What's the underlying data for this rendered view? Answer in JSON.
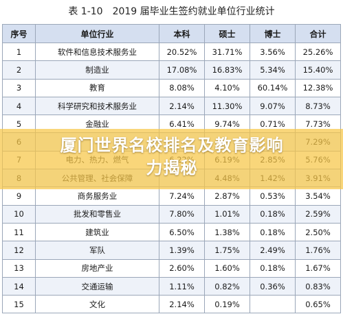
{
  "title": "表 1-10　2019 届毕业生签约就业单位行业统计",
  "headers": [
    "序号",
    "单位行业",
    "本科",
    "硕士",
    "博士",
    "合计"
  ],
  "rows": [
    [
      "1",
      "软件和信息技术服务业",
      "20.52%",
      "31.71%",
      "3.56%",
      "25.26%"
    ],
    [
      "2",
      "制造业",
      "17.08%",
      "16.83%",
      "5.34%",
      "15.40%"
    ],
    [
      "3",
      "教育",
      "8.08%",
      "4.10%",
      "60.14%",
      "12.38%"
    ],
    [
      "4",
      "科学研究和技术服务业",
      "2.14%",
      "11.30%",
      "9.07%",
      "8.73%"
    ],
    [
      "5",
      "金融业",
      "6.41%",
      "9.74%",
      "0.71%",
      "7.73%"
    ],
    [
      "6",
      "",
      "",
      "",
      "",
      "7.29%"
    ],
    [
      "7",
      "电力、热力、燃气",
      "6.22%",
      "6.19%",
      "2.85%",
      "5.76%"
    ],
    [
      "8",
      "公共管理、社会保障",
      "",
      "4.48%",
      "1.42%",
      "3.91%"
    ],
    [
      "9",
      "商务服务业",
      "7.24%",
      "2.87%",
      "0.53%",
      "3.54%"
    ],
    [
      "10",
      "批发和零售业",
      "7.80%",
      "1.01%",
      "0.18%",
      "2.59%"
    ],
    [
      "11",
      "建筑业",
      "6.50%",
      "1.38%",
      "0.18%",
      "2.50%"
    ],
    [
      "12",
      "军队",
      "1.39%",
      "1.75%",
      "2.49%",
      "1.76%"
    ],
    [
      "13",
      "房地产业",
      "2.60%",
      "1.60%",
      "0.18%",
      "1.67%"
    ],
    [
      "14",
      "交通运输",
      "1.11%",
      "0.82%",
      "0.36%",
      "0.83%"
    ],
    [
      "15",
      "文化",
      "2.14%",
      "0.19%",
      "",
      "0.65%"
    ]
  ],
  "banner": {
    "line1": "厦门世界名校排名及教育影响",
    "line2": "力揭秘",
    "color": "#f6c646"
  }
}
